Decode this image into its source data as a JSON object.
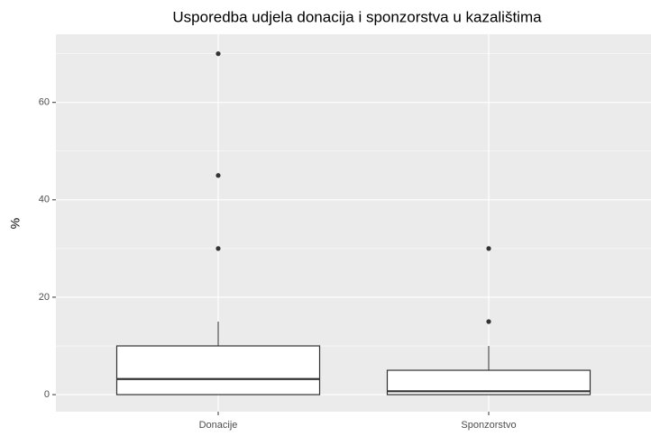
{
  "chart_data": {
    "type": "box",
    "title": "Usporedba udjela donacija i sponzorstva u kazalištima",
    "y_label": "%",
    "categories": [
      "Donacije",
      "Sponzorstvo"
    ],
    "boxes": [
      {
        "min": 0,
        "q1": 0,
        "median": 3.2,
        "q3": 10,
        "max": 15,
        "outliers": [
          30,
          45,
          70
        ]
      },
      {
        "min": 0,
        "q1": 0,
        "median": 0.7,
        "q3": 5,
        "max": 10,
        "outliers": [
          15,
          30
        ]
      }
    ],
    "ylim": [
      -3.5,
      74
    ],
    "yticks": [
      0,
      20,
      40,
      60
    ],
    "y_minor_ticks": [
      10,
      30,
      50,
      70
    ],
    "grid": true,
    "box_fill": "#ffffff",
    "line_color": "#333333",
    "panel_color": "#ebebeb"
  }
}
